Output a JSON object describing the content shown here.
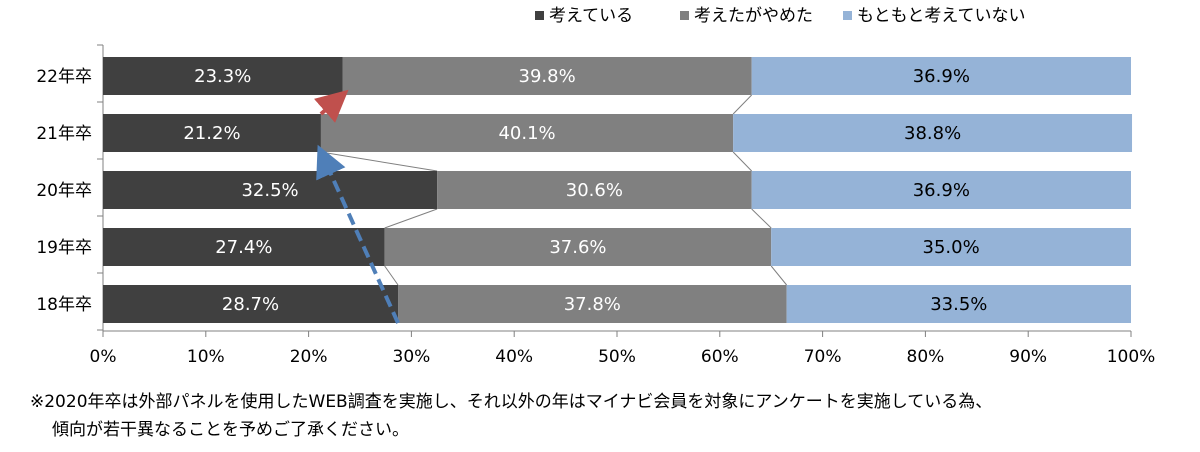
{
  "chart_data": {
    "type": "bar",
    "orientation": "horizontal",
    "stacked": true,
    "categories": [
      "22年卒",
      "21年卒",
      "20年卒",
      "19年卒",
      "18年卒"
    ],
    "series": [
      {
        "name": "考えている",
        "color": "#404040",
        "values": [
          23.3,
          21.2,
          32.5,
          27.4,
          28.7
        ],
        "labels": [
          "23.3%",
          "21.2%",
          "32.5%",
          "27.4%",
          "28.7%"
        ]
      },
      {
        "name": "考えたがやめた",
        "color": "#808080",
        "values": [
          39.8,
          40.1,
          30.6,
          37.6,
          37.8
        ],
        "labels": [
          "39.8%",
          "40.1%",
          "30.6%",
          "37.6%",
          "37.8%"
        ]
      },
      {
        "name": "もともと考えていない",
        "color": "#95b3d7",
        "values": [
          36.9,
          38.8,
          36.9,
          35.0,
          33.5
        ],
        "labels": [
          "36.9%",
          "38.8%",
          "36.9%",
          "35.0%",
          "33.5%"
        ]
      }
    ],
    "x_ticks": [
      "0%",
      "10%",
      "20%",
      "30%",
      "40%",
      "50%",
      "60%",
      "70%",
      "80%",
      "90%",
      "100%"
    ],
    "xlim": [
      0,
      100
    ],
    "legend_position": "top-right",
    "series_lines": true,
    "annotations": [
      {
        "type": "dashed-arrow",
        "color": "#4f7fb8",
        "from": {
          "category": "18年卒",
          "x": 28.7
        },
        "to": {
          "category": "21年卒",
          "x": 21.2
        }
      },
      {
        "type": "dashed-arrow",
        "color": "#c0504d",
        "from": {
          "category": "21年卒",
          "x": 21.2
        },
        "to": {
          "category": "22年卒",
          "x": 23.3
        }
      }
    ]
  },
  "notes": {
    "line1": "※2020年卒は外部パネルを使用したWEB調査を実施し、それ以外の年はマイナビ会員を対象にアンケートを実施している為、",
    "line2": "傾向が若干異なることを予めご了承ください。"
  }
}
